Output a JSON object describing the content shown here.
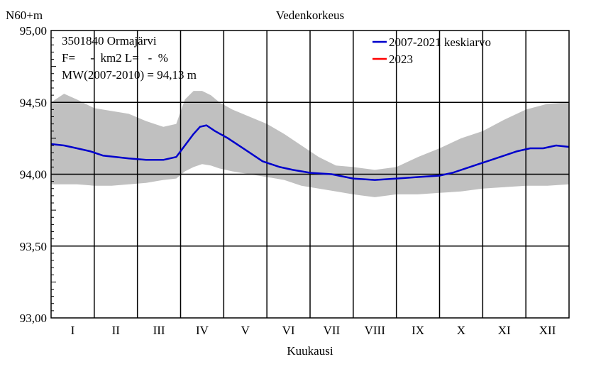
{
  "chart_data": {
    "type": "area",
    "title": "Vedenkorkeus",
    "ylabel": "N60+m",
    "xlabel": "Kuukausi",
    "ylim": [
      93.0,
      95.0
    ],
    "yticks": [
      "93,00",
      "93,50",
      "94,00",
      "94,50",
      "95,00"
    ],
    "categories": [
      "I",
      "II",
      "III",
      "IV",
      "V",
      "VI",
      "VII",
      "VIII",
      "IX",
      "X",
      "XI",
      "XII"
    ],
    "grid": true,
    "info": {
      "station": "3501840 Ormajärvi",
      "area": "F=     -  km2 L=   -  %",
      "mean": "MW(2007-2010) = 94,13 m"
    },
    "legend_position": "top-right",
    "series": [
      {
        "name": "2007-2021 keskiarvo",
        "color": "#0000cc",
        "x": [
          0,
          0.3,
          0.6,
          0.9,
          1.2,
          1.5,
          1.8,
          2.2,
          2.6,
          2.9,
          3.1,
          3.3,
          3.45,
          3.6,
          3.8,
          4.1,
          4.5,
          4.9,
          5.3,
          5.6,
          6.0,
          6.5,
          7.0,
          7.5,
          8.0,
          8.5,
          9.0,
          9.3,
          9.6,
          9.9,
          10.2,
          10.5,
          10.8,
          11.1,
          11.4,
          11.7,
          12.0
        ],
        "y": [
          94.21,
          94.2,
          94.18,
          94.16,
          94.13,
          94.12,
          94.11,
          94.1,
          94.1,
          94.12,
          94.2,
          94.28,
          94.33,
          94.34,
          94.3,
          94.25,
          94.17,
          94.09,
          94.05,
          94.03,
          94.01,
          94.0,
          93.97,
          93.96,
          93.97,
          93.98,
          93.99,
          94.01,
          94.04,
          94.07,
          94.1,
          94.13,
          94.16,
          94.18,
          94.18,
          94.2,
          94.19
        ]
      },
      {
        "name": "2023",
        "color": "#ff0000",
        "x": [],
        "y": []
      }
    ],
    "range_band": {
      "color": "#c0c0c0",
      "x": [
        0,
        0.3,
        0.6,
        1.0,
        1.4,
        1.8,
        2.2,
        2.6,
        2.9,
        3.1,
        3.3,
        3.5,
        3.7,
        3.9,
        4.2,
        4.6,
        5.0,
        5.4,
        5.8,
        6.2,
        6.6,
        7.0,
        7.5,
        8.0,
        8.5,
        9.0,
        9.5,
        10.0,
        10.5,
        11.0,
        11.5,
        12.0
      ],
      "upper": [
        94.5,
        94.56,
        94.52,
        94.46,
        94.44,
        94.42,
        94.37,
        94.33,
        94.35,
        94.52,
        94.58,
        94.58,
        94.55,
        94.5,
        94.45,
        94.4,
        94.35,
        94.28,
        94.2,
        94.12,
        94.06,
        94.05,
        94.03,
        94.05,
        94.12,
        94.18,
        94.25,
        94.3,
        94.38,
        94.45,
        94.49,
        94.5
      ],
      "lower": [
        93.93,
        93.93,
        93.93,
        93.92,
        93.92,
        93.93,
        93.94,
        93.96,
        93.97,
        94.02,
        94.05,
        94.07,
        94.06,
        94.04,
        94.02,
        94.0,
        93.98,
        93.96,
        93.92,
        93.9,
        93.88,
        93.86,
        93.84,
        93.86,
        93.86,
        93.87,
        93.88,
        93.9,
        93.91,
        93.92,
        93.92,
        93.93
      ]
    }
  }
}
